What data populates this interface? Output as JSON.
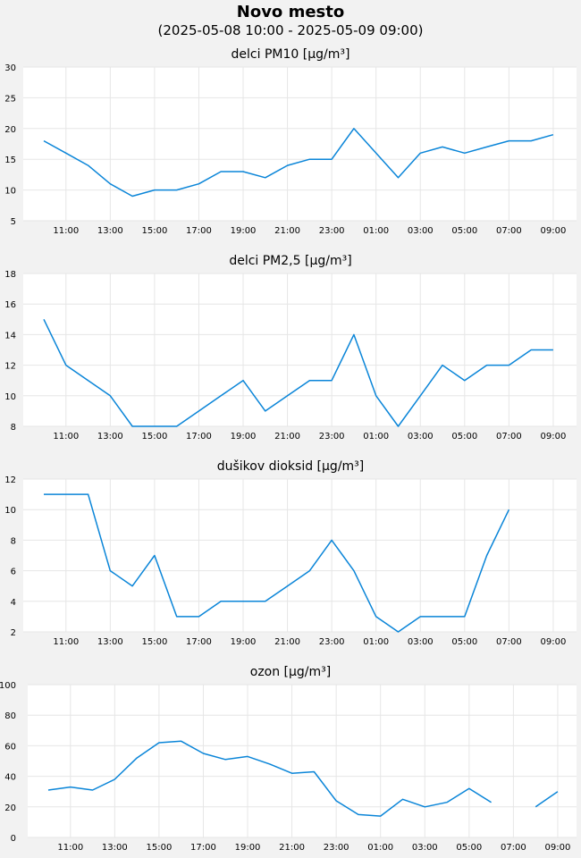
{
  "header": {
    "title": "Novo mesto",
    "subtitle": "(2025-05-08 10:00 - 2025-05-09 09:00)"
  },
  "colors": {
    "line": "#0a85d8",
    "grid": "#e6e6e6",
    "plot_bg": "#ffffff",
    "page_bg": "#f2f2f2"
  },
  "x_tick_labels": [
    "11:00",
    "13:00",
    "15:00",
    "17:00",
    "19:00",
    "21:00",
    "23:00",
    "01:00",
    "03:00",
    "05:00",
    "07:00",
    "09:00"
  ],
  "chart_data": [
    {
      "type": "line",
      "title": "delci PM10 [µg/m³]",
      "x": [
        "10:00",
        "11:00",
        "12:00",
        "13:00",
        "14:00",
        "15:00",
        "16:00",
        "17:00",
        "18:00",
        "19:00",
        "20:00",
        "21:00",
        "22:00",
        "23:00",
        "00:00",
        "01:00",
        "02:00",
        "03:00",
        "04:00",
        "05:00",
        "06:00",
        "07:00",
        "08:00",
        "09:00"
      ],
      "values": [
        18,
        16,
        14,
        11,
        9,
        10,
        10,
        11,
        13,
        13,
        12,
        14,
        15,
        15,
        20,
        16,
        12,
        16,
        17,
        16,
        17,
        18,
        18,
        19
      ],
      "ylim": [
        5,
        30
      ],
      "yticks": [
        5,
        10,
        15,
        20,
        25,
        30
      ],
      "grid": true
    },
    {
      "type": "line",
      "title": "delci PM2,5 [µg/m³]",
      "x": [
        "10:00",
        "11:00",
        "12:00",
        "13:00",
        "14:00",
        "15:00",
        "16:00",
        "17:00",
        "18:00",
        "19:00",
        "20:00",
        "21:00",
        "22:00",
        "23:00",
        "00:00",
        "01:00",
        "02:00",
        "03:00",
        "04:00",
        "05:00",
        "06:00",
        "07:00",
        "08:00",
        "09:00"
      ],
      "values": [
        15,
        12,
        11,
        10,
        8,
        8,
        8,
        9,
        10,
        11,
        9,
        10,
        11,
        11,
        14,
        10,
        8,
        10,
        12,
        11,
        12,
        12,
        13,
        13
      ],
      "ylim": [
        8,
        18
      ],
      "yticks": [
        8,
        10,
        12,
        14,
        16,
        18
      ],
      "grid": true
    },
    {
      "type": "line",
      "title": "dušikov dioksid [µg/m³]",
      "x": [
        "10:00",
        "11:00",
        "12:00",
        "13:00",
        "14:00",
        "15:00",
        "16:00",
        "17:00",
        "18:00",
        "19:00",
        "20:00",
        "21:00",
        "22:00",
        "23:00",
        "00:00",
        "01:00",
        "02:00",
        "03:00",
        "04:00",
        "05:00",
        "06:00",
        "07:00",
        "08:00",
        "09:00"
      ],
      "values": [
        11,
        11,
        11,
        6,
        5,
        7,
        3,
        3,
        4,
        4,
        4,
        5,
        6,
        8,
        6,
        3,
        2,
        3,
        3,
        3,
        7,
        10,
        null,
        null
      ],
      "ylim": [
        2,
        12
      ],
      "yticks": [
        2,
        4,
        6,
        8,
        10,
        12
      ],
      "grid": true
    },
    {
      "type": "line",
      "title": "ozon [µg/m³]",
      "x": [
        "10:00",
        "11:00",
        "12:00",
        "13:00",
        "14:00",
        "15:00",
        "16:00",
        "17:00",
        "18:00",
        "19:00",
        "20:00",
        "21:00",
        "22:00",
        "23:00",
        "00:00",
        "01:00",
        "02:00",
        "03:00",
        "04:00",
        "05:00",
        "06:00",
        "07:00",
        "08:00",
        "09:00"
      ],
      "values": [
        31,
        33,
        31,
        38,
        52,
        62,
        63,
        55,
        51,
        53,
        48,
        42,
        43,
        24,
        15,
        14,
        25,
        20,
        23,
        32,
        23,
        null,
        20,
        30
      ],
      "ylim": [
        0,
        100
      ],
      "yticks": [
        0,
        20,
        40,
        60,
        80,
        100
      ],
      "grid": true
    }
  ]
}
